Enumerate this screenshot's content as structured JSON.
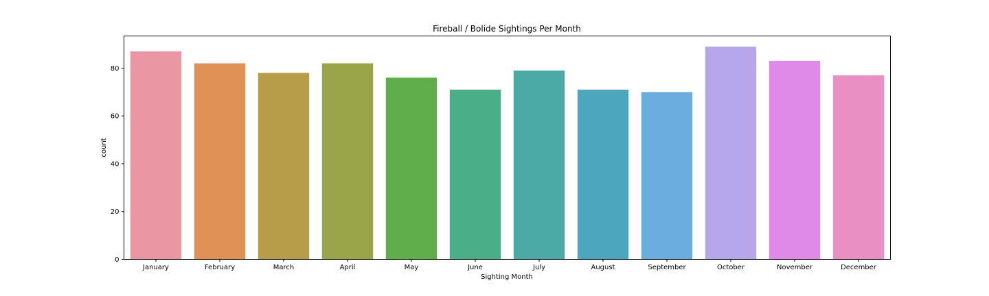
{
  "chart_data": {
    "type": "bar",
    "title": "Fireball / Bolide Sightings Per Month",
    "xlabel": "Sighting Month",
    "ylabel": "count",
    "categories": [
      "January",
      "February",
      "March",
      "April",
      "May",
      "June",
      "July",
      "August",
      "September",
      "October",
      "November",
      "December"
    ],
    "values": [
      87,
      82,
      78,
      82,
      76,
      71,
      79,
      71,
      70,
      89,
      83,
      77
    ],
    "colors": [
      "#ea96a3",
      "#e09155",
      "#b79c4a",
      "#9aa448",
      "#60ae4b",
      "#4aae89",
      "#4ba9a6",
      "#4ca7be",
      "#6aadde",
      "#b6a7eb",
      "#df8ae9",
      "#e88fc4"
    ],
    "ylim": [
      0,
      93.45
    ],
    "yticks": [
      0,
      20,
      40,
      60,
      80
    ],
    "grid": false,
    "legend": "none"
  }
}
